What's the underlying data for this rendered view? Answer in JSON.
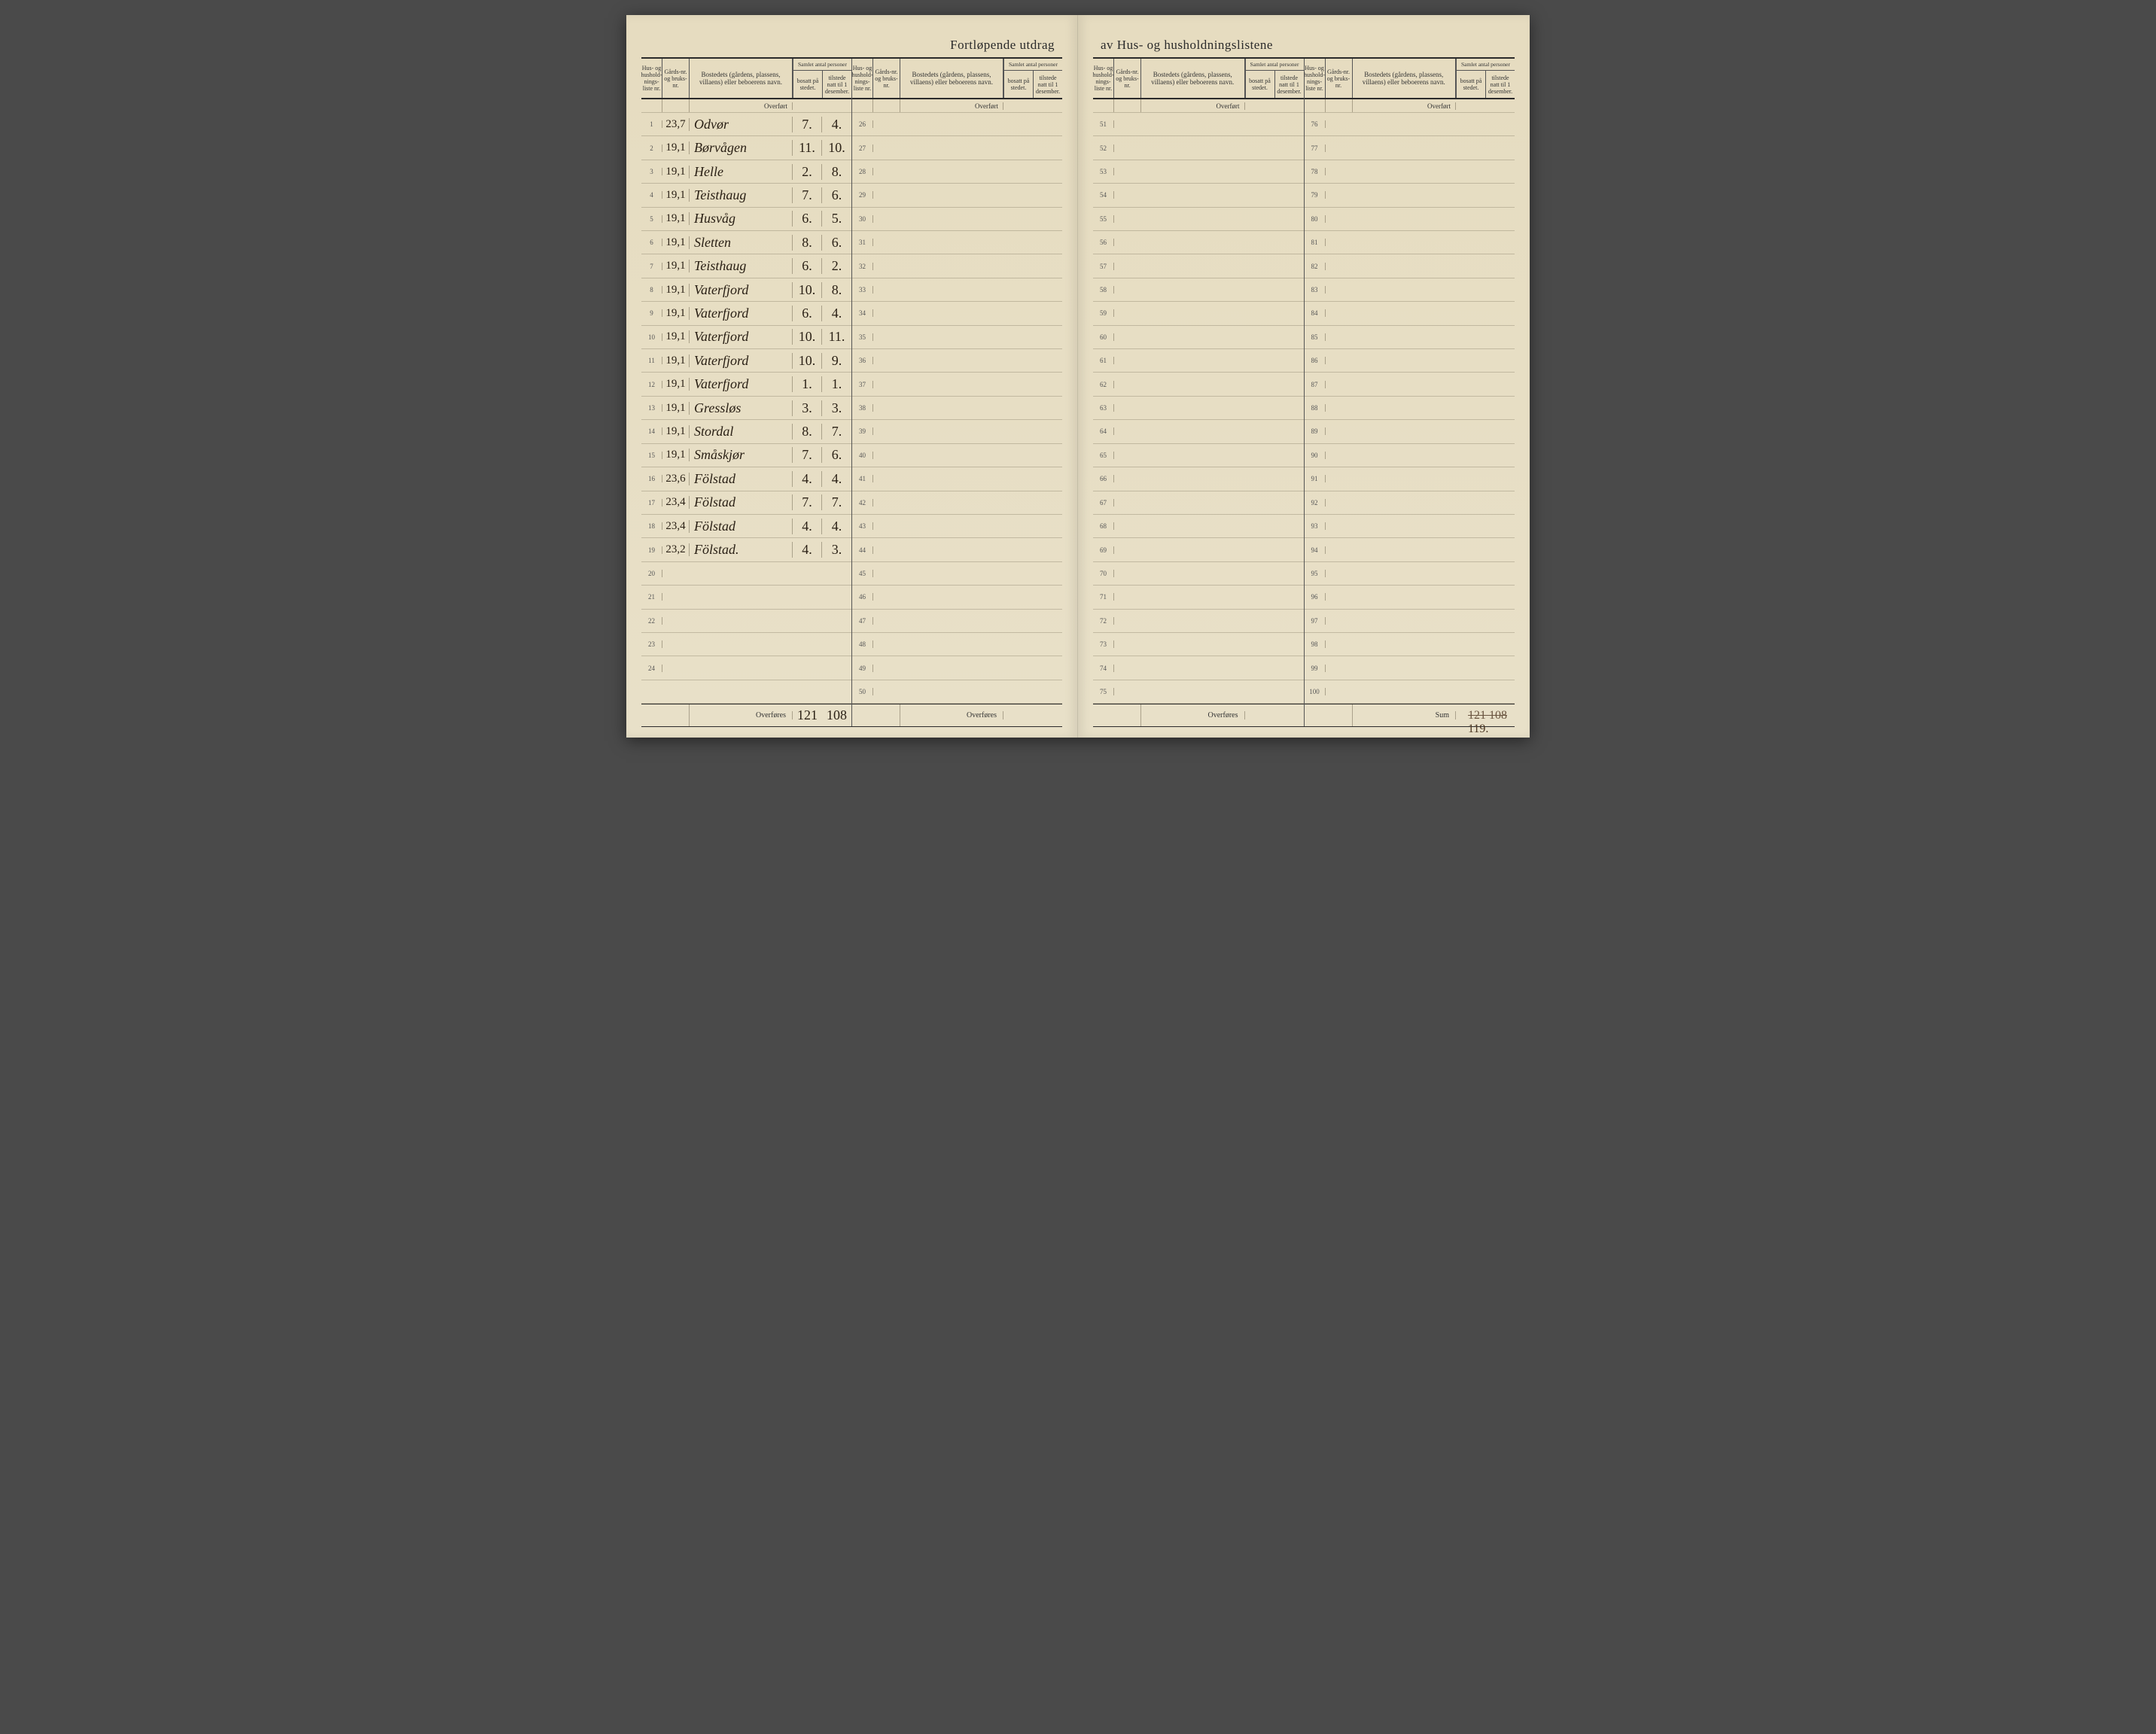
{
  "title_left": "Fortløpende utdrag",
  "title_right": "av Hus- og husholdningslistene",
  "headers": {
    "nr": "Hus- og hushold-nings-liste nr.",
    "gard": "Gårds-nr. og bruks-nr.",
    "bosted": "Bostedets (gårdens, plassens, villaens) eller beboerens navn.",
    "samlet": "Samlet antal personer",
    "bosatt": "bosatt på stedet.",
    "tilstede": "tilstede natt til 1 desember."
  },
  "overfort_label": "Overført",
  "overfores_label": "Overføres",
  "sum_label": "Sum",
  "panels": [
    {
      "footer": {
        "label": "Overføres",
        "b1": "121",
        "b2": "108"
      },
      "rows": [
        {
          "nr": "1",
          "gard": "23,7",
          "bosted": "Odvør",
          "b1": "7.",
          "b2": "4."
        },
        {
          "nr": "2",
          "gard": "19,1",
          "bosted": "Børvågen",
          "b1": "11.",
          "b2": "10."
        },
        {
          "nr": "3",
          "gard": "19,1",
          "bosted": "Helle",
          "b1": "2.",
          "b2": "8."
        },
        {
          "nr": "4",
          "gard": "19,1",
          "bosted": "Teisthaug",
          "b1": "7.",
          "b2": "6."
        },
        {
          "nr": "5",
          "gard": "19,1",
          "bosted": "Husvåg",
          "b1": "6.",
          "b2": "5."
        },
        {
          "nr": "6",
          "gard": "19,1",
          "bosted": "Sletten",
          "b1": "8.",
          "b2": "6."
        },
        {
          "nr": "7",
          "gard": "19,1",
          "bosted": "Teisthaug",
          "b1": "6.",
          "b2": "2."
        },
        {
          "nr": "8",
          "gard": "19,1",
          "bosted": "Vaterfjord",
          "b1": "10.",
          "b2": "8."
        },
        {
          "nr": "9",
          "gard": "19,1",
          "bosted": "Vaterfjord",
          "b1": "6.",
          "b2": "4."
        },
        {
          "nr": "10",
          "gard": "19,1",
          "bosted": "Vaterfjord",
          "b1": "10.",
          "b2": "11."
        },
        {
          "nr": "11",
          "gard": "19,1",
          "bosted": "Vaterfjord",
          "b1": "10.",
          "b2": "9."
        },
        {
          "nr": "12",
          "gard": "19,1",
          "bosted": "Vaterfjord",
          "b1": "1.",
          "b2": "1."
        },
        {
          "nr": "13",
          "gard": "19,1",
          "bosted": "Gressløs",
          "b1": "3.",
          "b2": "3."
        },
        {
          "nr": "14",
          "gard": "19,1",
          "bosted": "Stordal",
          "b1": "8.",
          "b2": "7."
        },
        {
          "nr": "15",
          "gard": "19,1",
          "bosted": "Småskjør",
          "b1": "7.",
          "b2": "6."
        },
        {
          "nr": "16",
          "gard": "23,6",
          "bosted": "Fölstad",
          "b1": "4.",
          "b2": "4."
        },
        {
          "nr": "17",
          "gard": "23,4",
          "bosted": "Fölstad",
          "b1": "7.",
          "b2": "7."
        },
        {
          "nr": "18",
          "gard": "23,4",
          "bosted": "Fölstad",
          "b1": "4.",
          "b2": "4."
        },
        {
          "nr": "19",
          "gard": "23,2",
          "bosted": "Fölstad.",
          "b1": "4.",
          "b2": "3."
        },
        {
          "nr": "20",
          "gard": "",
          "bosted": "",
          "b1": "",
          "b2": ""
        },
        {
          "nr": "21",
          "gard": "",
          "bosted": "",
          "b1": "",
          "b2": ""
        },
        {
          "nr": "22",
          "gard": "",
          "bosted": "",
          "b1": "",
          "b2": ""
        },
        {
          "nr": "23",
          "gard": "",
          "bosted": "",
          "b1": "",
          "b2": ""
        },
        {
          "nr": "24",
          "gard": "",
          "bosted": "",
          "b1": "",
          "b2": ""
        },
        {
          "nr": "",
          "gard": "",
          "bosted": "",
          "b1": "",
          "b2": ""
        }
      ]
    },
    {
      "footer": {
        "label": "Overføres",
        "b1": "",
        "b2": ""
      },
      "rows": [
        {
          "nr": "26"
        },
        {
          "nr": "27"
        },
        {
          "nr": "28"
        },
        {
          "nr": "29"
        },
        {
          "nr": "30"
        },
        {
          "nr": "31"
        },
        {
          "nr": "32"
        },
        {
          "nr": "33"
        },
        {
          "nr": "34"
        },
        {
          "nr": "35"
        },
        {
          "nr": "36"
        },
        {
          "nr": "37"
        },
        {
          "nr": "38"
        },
        {
          "nr": "39"
        },
        {
          "nr": "40"
        },
        {
          "nr": "41"
        },
        {
          "nr": "42"
        },
        {
          "nr": "43"
        },
        {
          "nr": "44"
        },
        {
          "nr": "45"
        },
        {
          "nr": "46"
        },
        {
          "nr": "47"
        },
        {
          "nr": "48"
        },
        {
          "nr": "49"
        },
        {
          "nr": "50"
        }
      ]
    },
    {
      "footer": {
        "label": "Overføres",
        "b1": "",
        "b2": ""
      },
      "rows": [
        {
          "nr": "51"
        },
        {
          "nr": "52"
        },
        {
          "nr": "53"
        },
        {
          "nr": "54"
        },
        {
          "nr": "55"
        },
        {
          "nr": "56"
        },
        {
          "nr": "57"
        },
        {
          "nr": "58"
        },
        {
          "nr": "59"
        },
        {
          "nr": "60"
        },
        {
          "nr": "61"
        },
        {
          "nr": "62"
        },
        {
          "nr": "63"
        },
        {
          "nr": "64"
        },
        {
          "nr": "65"
        },
        {
          "nr": "66"
        },
        {
          "nr": "67"
        },
        {
          "nr": "68"
        },
        {
          "nr": "69"
        },
        {
          "nr": "70"
        },
        {
          "nr": "71"
        },
        {
          "nr": "72"
        },
        {
          "nr": "73"
        },
        {
          "nr": "74"
        },
        {
          "nr": "75"
        }
      ]
    },
    {
      "footer": {
        "label": "Sum",
        "b1": "",
        "b2": ""
      },
      "rows": [
        {
          "nr": "76"
        },
        {
          "nr": "77"
        },
        {
          "nr": "78"
        },
        {
          "nr": "79"
        },
        {
          "nr": "80"
        },
        {
          "nr": "81"
        },
        {
          "nr": "82"
        },
        {
          "nr": "83"
        },
        {
          "nr": "84"
        },
        {
          "nr": "85"
        },
        {
          "nr": "86"
        },
        {
          "nr": "87"
        },
        {
          "nr": "88"
        },
        {
          "nr": "89"
        },
        {
          "nr": "90"
        },
        {
          "nr": "91"
        },
        {
          "nr": "92"
        },
        {
          "nr": "93"
        },
        {
          "nr": "94"
        },
        {
          "nr": "95"
        },
        {
          "nr": "96"
        },
        {
          "nr": "97"
        },
        {
          "nr": "98"
        },
        {
          "nr": "99"
        },
        {
          "nr": "100"
        }
      ]
    }
  ],
  "sum_annotation": {
    "struck": "121 108",
    "below": "119."
  },
  "colors": {
    "paper": "#e8e0c8",
    "ink_print": "#2a2a2a",
    "ink_hand": "#2a2015",
    "rule_light": "rgba(80,70,50,0.25)"
  }
}
